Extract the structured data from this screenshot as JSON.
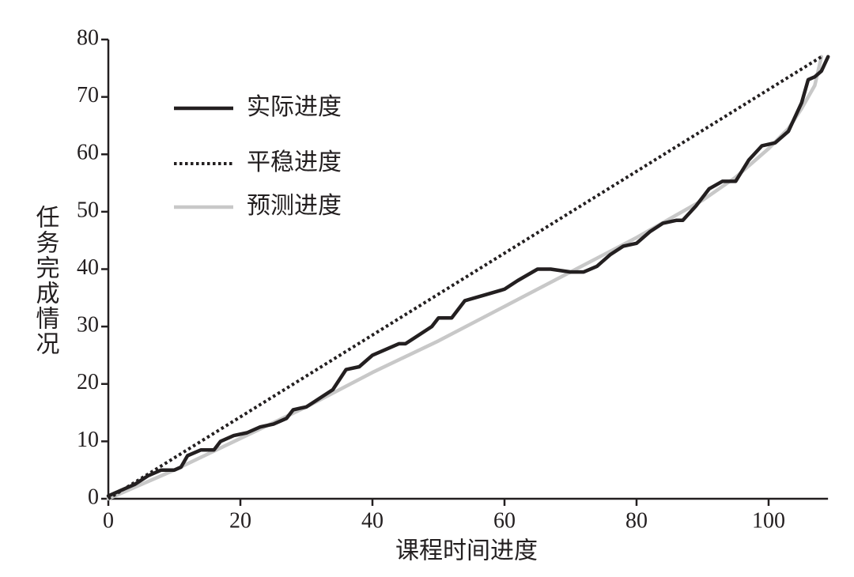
{
  "chart_data": {
    "type": "line",
    "x_label": "课程时间进度",
    "y_label": "任务完成情况",
    "xlim": [
      0,
      109
    ],
    "ylim": [
      0,
      80
    ],
    "xticks": [
      0,
      20,
      40,
      60,
      80,
      100
    ],
    "yticks": [
      0,
      10,
      20,
      30,
      40,
      50,
      60,
      70,
      80
    ],
    "series": [
      {
        "name": "实际进度",
        "color": "#231f20",
        "style": "solid",
        "x": [
          0,
          2,
          4,
          6,
          8,
          10,
          11,
          12,
          14,
          15,
          16,
          17,
          19,
          21,
          23,
          25,
          27,
          28,
          30,
          32,
          34,
          36,
          38,
          40,
          42,
          44,
          45,
          47,
          49,
          50,
          52,
          54,
          57,
          60,
          62,
          65,
          67,
          70,
          72,
          74,
          76,
          78,
          80,
          82,
          84,
          86,
          87,
          89,
          91,
          93,
          95,
          97,
          99,
          101,
          103,
          105,
          106,
          107,
          108,
          109
        ],
        "values": [
          0.5,
          1.5,
          2.5,
          4,
          5,
          5,
          5.5,
          7.5,
          8.5,
          8.5,
          8.5,
          10,
          11,
          11.5,
          12.5,
          13,
          14,
          15.5,
          16,
          17.5,
          19,
          22.5,
          23,
          25,
          26,
          27,
          27,
          28.5,
          30,
          31.5,
          31.5,
          34.5,
          35.5,
          36.5,
          38,
          40,
          40,
          39.5,
          39.5,
          40.5,
          42.5,
          44,
          44.5,
          46.5,
          48,
          48.5,
          48.5,
          51,
          54,
          55.3,
          55.3,
          59,
          61.5,
          62,
          64,
          69,
          73,
          73.5,
          74.5,
          77
        ]
      },
      {
        "name": "平稳进度",
        "color": "#231f20",
        "style": "dotted",
        "x": [
          0,
          108
        ],
        "values": [
          0,
          77
        ]
      },
      {
        "name": "预测进度",
        "color": "#c8c8c8",
        "style": "solid",
        "x": [
          0,
          10,
          20,
          30,
          40,
          50,
          60,
          70,
          80,
          90,
          95,
          100,
          103,
          105,
          107,
          108
        ],
        "values": [
          0,
          5,
          10.5,
          16,
          22,
          27.5,
          33.5,
          39.5,
          45.5,
          52,
          56,
          61,
          64.5,
          68,
          72,
          77
        ]
      }
    ]
  }
}
